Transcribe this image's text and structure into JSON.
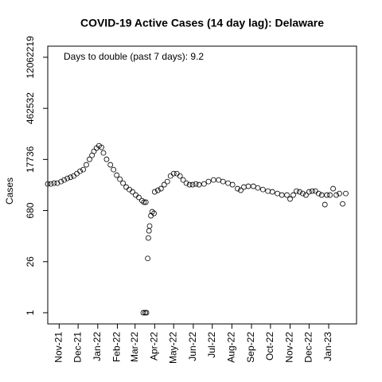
{
  "chart_data": {
    "type": "scatter",
    "title": "COVID-19 Active Cases (14 day lag): Delaware",
    "y_label": "Cases",
    "annotation": "Days to double (past 7 days): 9.2",
    "log_y": true,
    "color": "#000000",
    "xlim": [
      -18,
      470
    ],
    "xticks": [
      {
        "value": 0,
        "label": "Nov-21"
      },
      {
        "value": 30,
        "label": "Dec-21"
      },
      {
        "value": 61,
        "label": "Jan-22"
      },
      {
        "value": 92,
        "label": "Feb-22"
      },
      {
        "value": 120,
        "label": "Mar-22"
      },
      {
        "value": 151,
        "label": "Apr-22"
      },
      {
        "value": 181,
        "label": "May-22"
      },
      {
        "value": 212,
        "label": "Jun-22"
      },
      {
        "value": 242,
        "label": "Jul-22"
      },
      {
        "value": 273,
        "label": "Aug-22"
      },
      {
        "value": 304,
        "label": "Sep-22"
      },
      {
        "value": 334,
        "label": "Oct-22"
      },
      {
        "value": 365,
        "label": "Nov-22"
      },
      {
        "value": 395,
        "label": "Dec-22"
      },
      {
        "value": 426,
        "label": "Jan-23"
      }
    ],
    "ylim": [
      0.49,
      24500000
    ],
    "yticks": [
      1,
      26,
      680,
      17736,
      462532,
      12062219
    ],
    "x": [
      -18,
      -13,
      -8,
      -3,
      3,
      8,
      13,
      18,
      23,
      28,
      33,
      38,
      43,
      48,
      52,
      55,
      59,
      63,
      67,
      70,
      75,
      81,
      86,
      91,
      96,
      101,
      106,
      111,
      116,
      121,
      126,
      131,
      134,
      137,
      133,
      136,
      138,
      140,
      141,
      142,
      143,
      145,
      147,
      150,
      151,
      156,
      161,
      166,
      171,
      176,
      181,
      186,
      191,
      196,
      201,
      206,
      211,
      216,
      221,
      229,
      236,
      244,
      252,
      259,
      267,
      274,
      282,
      287,
      292,
      299,
      307,
      314,
      322,
      330,
      337,
      345,
      352,
      360,
      365,
      370,
      375,
      380,
      385,
      390,
      395,
      400,
      405,
      410,
      415,
      420,
      423,
      428,
      433,
      438,
      443,
      448,
      453
    ],
    "values": [
      3720,
      3720,
      3910,
      3910,
      4330,
      4790,
      5300,
      5700,
      6170,
      7190,
      8380,
      9270,
      12600,
      17900,
      23100,
      29800,
      36600,
      42600,
      38500,
      26900,
      17900,
      12600,
      9270,
      6510,
      5040,
      3910,
      3040,
      2606,
      2240,
      1830,
      1570,
      1280,
      1160,
      1160,
      1,
      1,
      1,
      32,
      118,
      186,
      253,
      489,
      630,
      569,
      2240,
      2480,
      2745,
      3540,
      4330,
      6170,
      7190,
      7190,
      6170,
      4790,
      3910,
      3540,
      3540,
      3720,
      3540,
      3720,
      4330,
      4790,
      4790,
      4330,
      3910,
      3540,
      2745,
      2480,
      3040,
      3200,
      3200,
      2880,
      2606,
      2350,
      2240,
      2020,
      1830,
      1830,
      1420,
      1830,
      2350,
      2240,
      2020,
      1830,
      2240,
      2350,
      2350,
      2020,
      1830,
      994,
      1830,
      1830,
      2745,
      1830,
      2020,
      1045,
      2020
    ]
  }
}
